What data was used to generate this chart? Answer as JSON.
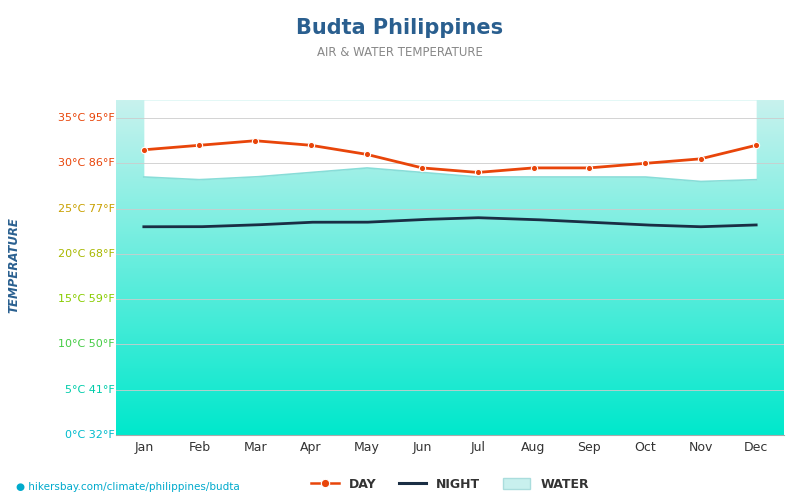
{
  "title": "Budta Philippines",
  "subtitle": "AIR & WATER TEMPERATURE",
  "xlabel_url": "hikersbay.com/climate/philippines/budta",
  "ylabel": "TEMPERATURE",
  "months": [
    "Jan",
    "Feb",
    "Mar",
    "Apr",
    "May",
    "Jun",
    "Jul",
    "Aug",
    "Sep",
    "Oct",
    "Nov",
    "Dec"
  ],
  "day_temps": [
    31.5,
    32.0,
    32.5,
    32.0,
    31.0,
    29.5,
    29.0,
    29.5,
    29.5,
    30.0,
    30.5,
    32.0
  ],
  "night_temps": [
    23.0,
    23.0,
    23.2,
    23.5,
    23.5,
    23.8,
    24.0,
    23.8,
    23.5,
    23.2,
    23.0,
    23.2
  ],
  "water_temps": [
    28.5,
    28.2,
    28.5,
    29.0,
    29.5,
    29.0,
    28.5,
    28.5,
    28.5,
    28.5,
    28.0,
    28.2
  ],
  "ylim": [
    0,
    37
  ],
  "yticks_c": [
    0,
    5,
    10,
    15,
    20,
    25,
    30,
    35
  ],
  "yticks_f": [
    32,
    41,
    50,
    59,
    68,
    77,
    86,
    95
  ],
  "day_color": "#e8450a",
  "night_color": "#1a2e44",
  "water_top_color": "#c8f0ee",
  "water_bottom_color": "#00e8cc",
  "water_line_color": "#88ddd8",
  "background_color": "#ffffff",
  "title_color": "#2a5f8f",
  "subtitle_color": "#888888",
  "ylabel_color": "#2a6090",
  "grid_color": "#cccccc",
  "legend_day_label": "DAY",
  "legend_night_label": "NIGHT",
  "legend_water_label": "WATER",
  "tick_colors": {
    "35": "#e8450a",
    "30": "#e8450a",
    "25": "#c8a000",
    "20": "#a8b800",
    "15": "#88cc00",
    "10": "#44cc44",
    "5": "#00ccaa",
    "0": "#00bbcc"
  }
}
